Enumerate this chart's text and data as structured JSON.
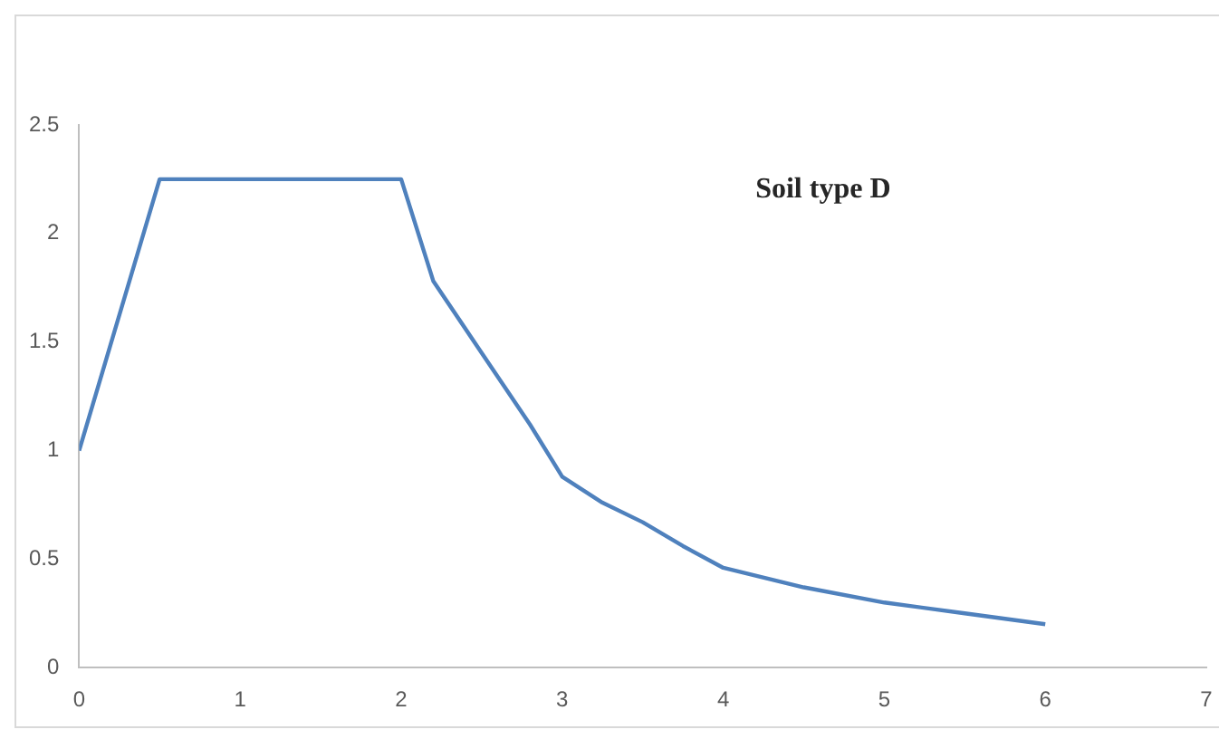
{
  "chart_data": {
    "type": "line",
    "x": [
      0,
      0.5,
      2,
      2.2,
      2.5,
      2.8,
      3,
      3.25,
      3.5,
      3.75,
      4,
      4.5,
      5,
      5.5,
      6
    ],
    "series": [
      {
        "color": "#4f81bd",
        "values": [
          1,
          2.25,
          2.25,
          1.78,
          1.45,
          1.12,
          0.88,
          0.76,
          0.67,
          0.56,
          0.46,
          0.37,
          0.3,
          0.25,
          0.2
        ]
      }
    ],
    "annotations": [
      "Soil type D"
    ],
    "xlim": [
      0,
      7
    ],
    "xticks": [
      0,
      1,
      2,
      3,
      4,
      5,
      6,
      7
    ],
    "ylim": [
      0,
      2.5
    ],
    "yticks": [
      0,
      0.5,
      1,
      1.5,
      2,
      2.5
    ],
    "grid": false,
    "legend": false,
    "marker": "none",
    "line_style": "solid"
  }
}
